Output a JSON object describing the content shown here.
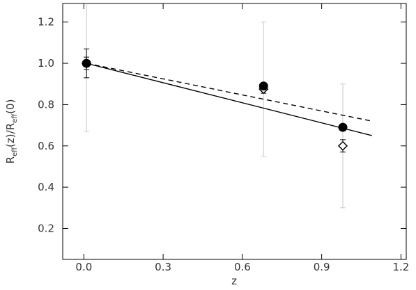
{
  "chart_data": {
    "type": "scatter",
    "xlabel": "z",
    "ylabel": [
      "R",
      "eff",
      "(z)/R",
      "eff",
      "(0)"
    ],
    "xlim": [
      -0.08,
      1.22
    ],
    "ylim": [
      0.05,
      1.29
    ],
    "xticks": [
      {
        "value": 0,
        "label": "0.0"
      },
      0.3,
      0.6,
      0.9,
      1.2
    ],
    "yticks": [
      0.2,
      0.4,
      0.6,
      0.8,
      {
        "value": 1,
        "label": "1.0"
      },
      1.2
    ],
    "series": [
      {
        "marker": "none",
        "linestyle": "solid",
        "color": "#000000",
        "x": [
          0.01,
          1.09
        ],
        "values": [
          1.0,
          0.65
        ]
      },
      {
        "marker": "none",
        "linestyle": "dashed",
        "color": "#000000",
        "x": [
          0.01,
          1.09
        ],
        "values": [
          1.0,
          0.72
        ]
      },
      {
        "marker": "diamond",
        "color": "#000000",
        "errcolor_outer": "#c8c8c8",
        "x": [
          0.01,
          0.68,
          0.98
        ],
        "values": [
          1.0,
          0.875,
          0.6
        ],
        "yerr": [
          0.03,
          0.02,
          0.03
        ],
        "yerr_outer": [
          0.33,
          0.325,
          0.3
        ]
      },
      {
        "marker": "circle",
        "color": "#000000",
        "x": [
          0.01,
          0.68,
          0.98
        ],
        "values": [
          1.0,
          0.89,
          0.69
        ],
        "yerr": [
          0.07,
          0.01,
          0.01
        ]
      }
    ]
  }
}
